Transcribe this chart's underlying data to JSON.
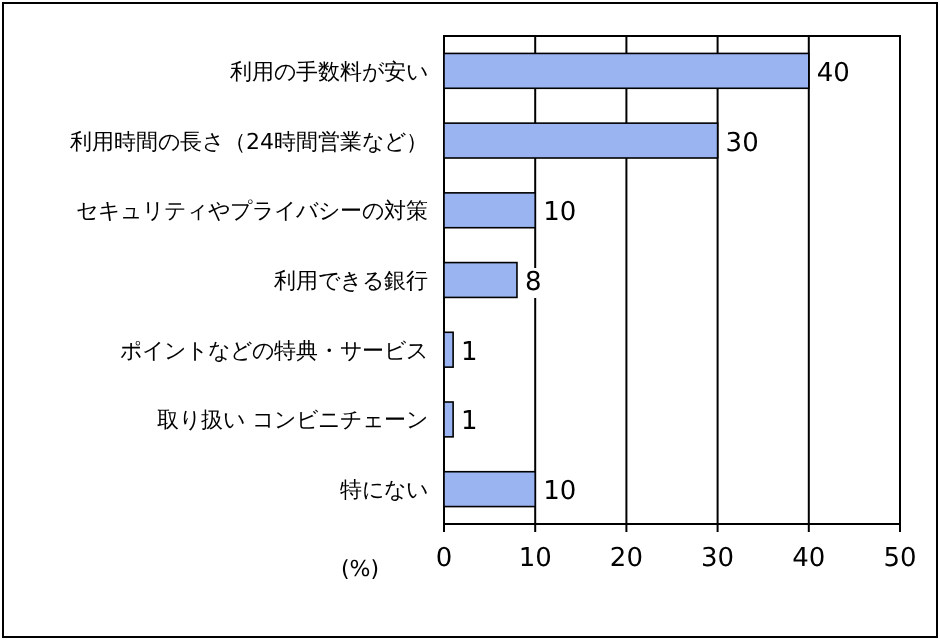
{
  "chart_data": {
    "type": "bar",
    "orientation": "horizontal",
    "categories": [
      "利用の手数料が安い",
      "利用時間の長さ（24時間営業など）",
      "セキュリティやプライバシーの対策",
      "利用できる銀行",
      "ポイントなどの特典・サービス",
      "取り扱い コンビニチェーン",
      "特にない"
    ],
    "values": [
      40,
      30,
      10,
      8,
      1,
      1,
      10
    ],
    "color": "#99b4f0",
    "xlim": [
      0,
      50
    ],
    "xticks": [
      0,
      10,
      20,
      30,
      40,
      50
    ],
    "xlabel": "(%)",
    "grid": "x",
    "data_labels": true
  }
}
